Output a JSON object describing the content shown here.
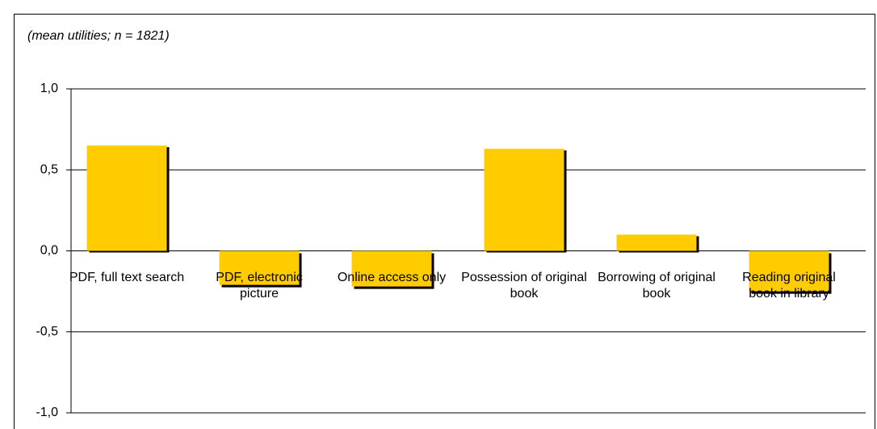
{
  "chart_data": {
    "type": "bar",
    "subtitle": "(mean utilities; n = 1821)",
    "categories": [
      "PDF, full text search",
      "PDF, electronic picture",
      "Online access only",
      "Possession of original book",
      "Borrowing of original book",
      "Reading original book in library"
    ],
    "values": [
      0.65,
      -0.21,
      -0.22,
      0.63,
      0.1,
      -0.25
    ],
    "color": "#ffcc00",
    "ylim": [
      -1,
      1
    ],
    "yticks": [
      {
        "value": -1,
        "label": "-1,0"
      },
      {
        "value": -0.5,
        "label": "-0,5"
      },
      {
        "value": 0,
        "label": "0,0"
      },
      {
        "value": 0.5,
        "label": "0,5"
      },
      {
        "value": 1,
        "label": "1,0"
      }
    ],
    "grid": true
  }
}
